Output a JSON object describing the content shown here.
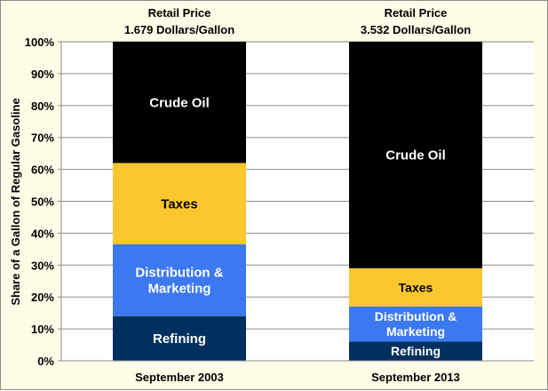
{
  "chart_data": {
    "type": "bar",
    "stacked": true,
    "ylabel": "Share of a Gallon of Regular Gasoline",
    "ylim": [
      0,
      100
    ],
    "yticks": [
      "0%",
      "10%",
      "20%",
      "30%",
      "40%",
      "50%",
      "60%",
      "70%",
      "80%",
      "90%",
      "100%"
    ],
    "grid": true,
    "categories": [
      "September 2003",
      "September 2013"
    ],
    "headers": [
      [
        "Retail Price",
        "1.679 Dollars/Gallon"
      ],
      [
        "Retail Price",
        "3.532 Dollars/Gallon"
      ]
    ],
    "series": [
      {
        "name": "Refining",
        "label_lines": [
          "Refining"
        ],
        "color": "#00305e",
        "values": [
          14,
          6
        ]
      },
      {
        "name": "Distribution & Marketing",
        "label_lines": [
          "Distribution &",
          "Marketing"
        ],
        "color": "#3c78f0",
        "values": [
          22.5,
          11
        ]
      },
      {
        "name": "Taxes",
        "label_lines": [
          "Taxes"
        ],
        "color": "#fcc62e",
        "values": [
          25.5,
          12
        ]
      },
      {
        "name": "Crude Oil",
        "label_lines": [
          "Crude Oil"
        ],
        "color": "#000000",
        "values": [
          38,
          71
        ]
      }
    ],
    "label_colors": {
      "Refining": "#ffffff",
      "Distribution & Marketing": "#ffffff",
      "Taxes": "#000000",
      "Crude Oil": "#ffffff"
    }
  }
}
